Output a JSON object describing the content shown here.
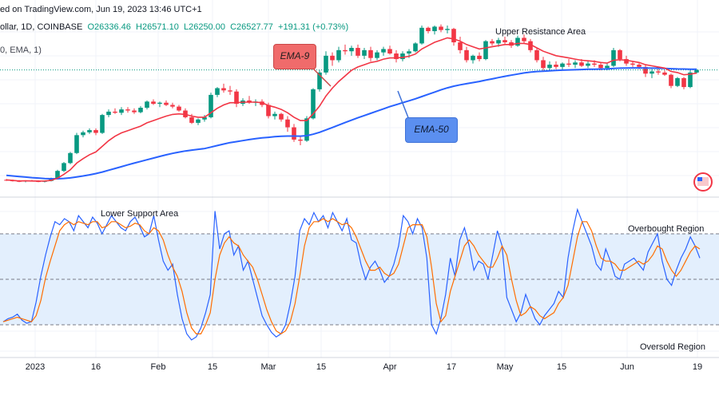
{
  "header": {
    "line1": "ed on TradingView.com, Jun 19, 2023 13:46 UTC+1",
    "symbol_prefix": "ollar, 1D, COINBASE",
    "open": "O26336.46",
    "high": "H26571.10",
    "low": "L26250.00",
    "close": "C26527.77",
    "change": "+191.31 (+0.73%)",
    "indicator": "0, EMA, 1)"
  },
  "annotations": {
    "ema9": "EMA-9",
    "ema50": "EMA-50",
    "upper_resistance": "Upper Resistance Area",
    "lower_support": "Lower Support Area",
    "overbought": "Overbought Region",
    "oversold": "Oversold Region"
  },
  "colors": {
    "ema9": "#f23645",
    "ema50": "#2962ff",
    "up_candle": "#089981",
    "down_candle": "#f23645",
    "stoch_k": "#2962ff",
    "stoch_d": "#ff6d00",
    "stoch_band": "#e3effd"
  },
  "x_axis": {
    "ticks": [
      "2023",
      "16",
      "Feb",
      "15",
      "Mar",
      "15",
      "Apr",
      "17",
      "May",
      "15",
      "Jun",
      "19"
    ]
  },
  "chart_data": [
    {
      "type": "candlestick",
      "title": "",
      "period": "1D",
      "price_range": [
        15800,
        31500
      ],
      "ohlc": [
        [
          16700,
          16780,
          16600,
          16650
        ],
        [
          16650,
          16720,
          16550,
          16600
        ],
        [
          16600,
          16680,
          16500,
          16560
        ],
        [
          16560,
          16640,
          16480,
          16620
        ],
        [
          16620,
          16700,
          16550,
          16580
        ],
        [
          16580,
          16660,
          16500,
          16540
        ],
        [
          16540,
          16620,
          16470,
          16600
        ],
        [
          16600,
          16900,
          16560,
          16850
        ],
        [
          16850,
          17600,
          16800,
          17500
        ],
        [
          17500,
          18300,
          17400,
          18200
        ],
        [
          18200,
          19200,
          18100,
          19100
        ],
        [
          19100,
          20900,
          19000,
          20700
        ],
        [
          20700,
          21100,
          20500,
          20950
        ],
        [
          20950,
          21300,
          20800,
          21150
        ],
        [
          21150,
          21300,
          20700,
          20900
        ],
        [
          20900,
          22600,
          20800,
          22500
        ],
        [
          22500,
          23000,
          22300,
          22800
        ],
        [
          22800,
          23100,
          22600,
          22700
        ],
        [
          22700,
          23200,
          22500,
          23000
        ],
        [
          23000,
          23200,
          22700,
          22900
        ],
        [
          22900,
          23100,
          22600,
          22750
        ],
        [
          22750,
          23300,
          22650,
          23150
        ],
        [
          23150,
          23800,
          23000,
          23700
        ],
        [
          23700,
          23900,
          23400,
          23500
        ],
        [
          23500,
          23700,
          23200,
          23600
        ],
        [
          23600,
          23800,
          23300,
          23400
        ],
        [
          23400,
          23600,
          23100,
          23250
        ],
        [
          23250,
          23400,
          22800,
          22900
        ],
        [
          22900,
          23100,
          22200,
          22300
        ],
        [
          22300,
          22600,
          21700,
          21800
        ],
        [
          21800,
          22200,
          21600,
          22100
        ],
        [
          22100,
          22500,
          21900,
          22300
        ],
        [
          22300,
          24500,
          22200,
          24300
        ],
        [
          24300,
          25000,
          24100,
          24900
        ],
        [
          24900,
          25300,
          24500,
          24700
        ],
        [
          24700,
          25100,
          24300,
          24600
        ],
        [
          24600,
          24800,
          23200,
          23500
        ],
        [
          23500,
          24000,
          23300,
          23800
        ],
        [
          23800,
          24200,
          23500,
          23600
        ],
        [
          23600,
          23900,
          23300,
          23700
        ],
        [
          23700,
          23900,
          23200,
          23400
        ],
        [
          23400,
          23600,
          22200,
          22400
        ],
        [
          22400,
          22800,
          22100,
          22600
        ],
        [
          22600,
          22700,
          21900,
          22100
        ],
        [
          22100,
          22400,
          21000,
          21400
        ],
        [
          21400,
          21700,
          20100,
          20300
        ],
        [
          20300,
          20600,
          19800,
          20200
        ],
        [
          20200,
          22400,
          20100,
          22200
        ],
        [
          22200,
          24900,
          22100,
          24800
        ],
        [
          24800,
          26500,
          24600,
          26300
        ],
        [
          26300,
          28200,
          26100,
          27800
        ],
        [
          27800,
          28100,
          26900,
          27400
        ],
        [
          27400,
          28600,
          27200,
          28300
        ],
        [
          28300,
          28800,
          27900,
          28200
        ],
        [
          28200,
          28700,
          27800,
          28500
        ],
        [
          28500,
          28800,
          27600,
          27800
        ],
        [
          27800,
          28500,
          27500,
          28300
        ],
        [
          28300,
          28600,
          27300,
          27600
        ],
        [
          27600,
          28300,
          27400,
          28100
        ],
        [
          28100,
          28600,
          27800,
          28400
        ],
        [
          28400,
          28700,
          27900,
          28000
        ],
        [
          28000,
          28300,
          27200,
          27500
        ],
        [
          27500,
          28200,
          27300,
          28000
        ],
        [
          28000,
          28400,
          27600,
          28200
        ],
        [
          28200,
          29000,
          28100,
          28900
        ],
        [
          28900,
          30500,
          28800,
          30300
        ],
        [
          30300,
          30400,
          29800,
          30000
        ],
        [
          30000,
          30500,
          29700,
          30400
        ],
        [
          30400,
          30600,
          29900,
          30100
        ],
        [
          30100,
          30500,
          29800,
          30200
        ],
        [
          30200,
          30300,
          28700,
          29000
        ],
        [
          29000,
          29500,
          28000,
          28300
        ],
        [
          28300,
          28600,
          27200,
          27400
        ],
        [
          27400,
          27900,
          27100,
          27800
        ],
        [
          27800,
          28100,
          27300,
          27500
        ],
        [
          27500,
          29200,
          27400,
          29100
        ],
        [
          29100,
          29300,
          28700,
          28900
        ],
        [
          28900,
          29400,
          28600,
          29200
        ],
        [
          29200,
          29500,
          28800,
          29000
        ],
        [
          29000,
          29200,
          28500,
          28700
        ],
        [
          28700,
          29600,
          28600,
          29400
        ],
        [
          29400,
          29700,
          28900,
          29100
        ],
        [
          29100,
          29300,
          28100,
          28300
        ],
        [
          28300,
          28500,
          27200,
          27400
        ],
        [
          27400,
          27700,
          26400,
          26700
        ],
        [
          26700,
          27300,
          26500,
          27000
        ],
        [
          27000,
          27300,
          26600,
          26800
        ],
        [
          26800,
          27200,
          26500,
          27100
        ],
        [
          27100,
          27500,
          26800,
          27000
        ],
        [
          27000,
          27400,
          26700,
          27200
        ],
        [
          27200,
          27500,
          26800,
          26900
        ],
        [
          26900,
          27300,
          26700,
          27100
        ],
        [
          27100,
          27400,
          26800,
          27000
        ],
        [
          27000,
          27200,
          26500,
          26700
        ],
        [
          26700,
          27100,
          26500,
          26900
        ],
        [
          26900,
          28500,
          26800,
          28300
        ],
        [
          28300,
          28400,
          27300,
          27500
        ],
        [
          27500,
          27800,
          26900,
          27100
        ],
        [
          27100,
          27300,
          26800,
          27000
        ],
        [
          27000,
          27200,
          26600,
          26800
        ],
        [
          26800,
          27000,
          25900,
          26200
        ],
        [
          26200,
          26600,
          25800,
          26400
        ],
        [
          26400,
          26600,
          26100,
          26300
        ],
        [
          26300,
          26500,
          26000,
          26100
        ],
        [
          26100,
          26200,
          24900,
          25100
        ],
        [
          25100,
          25900,
          25000,
          25800
        ],
        [
          25800,
          25900,
          24800,
          25000
        ],
        [
          25000,
          26600,
          24900,
          26300
        ],
        [
          26300,
          26600,
          26200,
          26528
        ]
      ],
      "ema9": [
        16700,
        16650,
        16600,
        16610,
        16600,
        16590,
        16600,
        16650,
        16850,
        17200,
        17600,
        18200,
        18600,
        18950,
        19200,
        19700,
        20200,
        20600,
        20900,
        21100,
        21300,
        21500,
        21800,
        22000,
        22200,
        22400,
        22550,
        22600,
        22550,
        22400,
        22300,
        22300,
        22700,
        23100,
        23400,
        23600,
        23600,
        23650,
        23650,
        23650,
        23600,
        23350,
        23200,
        23000,
        22700,
        22300,
        22000,
        22000,
        22600,
        23300,
        24200,
        24900,
        25500,
        26000,
        26500,
        26800,
        27000,
        27200,
        27300,
        27500,
        27600,
        27600,
        27650,
        27750,
        27950,
        28400,
        28700,
        29000,
        29200,
        29400,
        29300,
        29100,
        28800,
        28600,
        28400,
        28500,
        28600,
        28700,
        28800,
        28800,
        28900,
        28900,
        28800,
        28500,
        28200,
        28000,
        27800,
        27700,
        27600,
        27500,
        27400,
        27350,
        27300,
        27200,
        27150,
        27400,
        27450,
        27400,
        27300,
        27200,
        27000,
        26900,
        26800,
        26700,
        26400,
        26300,
        26100,
        26150,
        26250
      ],
      "ema50": [
        17100,
        17050,
        17000,
        16950,
        16900,
        16860,
        16820,
        16800,
        16800,
        16830,
        16880,
        16960,
        17050,
        17150,
        17260,
        17400,
        17560,
        17720,
        17880,
        18040,
        18200,
        18350,
        18500,
        18650,
        18800,
        18940,
        19070,
        19180,
        19280,
        19360,
        19430,
        19500,
        19630,
        19770,
        19900,
        20030,
        20120,
        20210,
        20300,
        20380,
        20450,
        20500,
        20560,
        20600,
        20620,
        20620,
        20610,
        20650,
        20780,
        20950,
        21170,
        21380,
        21600,
        21820,
        22040,
        22250,
        22450,
        22650,
        22850,
        23050,
        23250,
        23420,
        23600,
        23770,
        23950,
        24150,
        24350,
        24550,
        24750,
        24930,
        25080,
        25200,
        25300,
        25400,
        25500,
        25620,
        25730,
        25850,
        25960,
        26060,
        26160,
        26260,
        26330,
        26390,
        26420,
        26450,
        26480,
        26510,
        26530,
        26550,
        26570,
        26590,
        26600,
        26610,
        26620,
        26660,
        26690,
        26700,
        26710,
        26710,
        26700,
        26690,
        26680,
        26670,
        26640,
        26620,
        26610,
        26600,
        26590
      ]
    },
    {
      "type": "line",
      "title": "",
      "ylim": [
        0,
        100
      ],
      "overbought_level": 80,
      "midline_level": 50,
      "oversold_level": 20,
      "series": [
        {
          "values": [
            22,
            24,
            25,
            27,
            23,
            21,
            22,
            35,
            52,
            66,
            78,
            88,
            86,
            90,
            88,
            82,
            92,
            88,
            84,
            91,
            87,
            80,
            86,
            92,
            88,
            84,
            82,
            88,
            91,
            85,
            78,
            80,
            92,
            76,
            62,
            56,
            60,
            40,
            24,
            14,
            10,
            12,
            18,
            28,
            40,
            95,
            70,
            80,
            82,
            66,
            72,
            56,
            62,
            50,
            38,
            26,
            20,
            15,
            12,
            14,
            20,
            34,
            52,
            82,
            90,
            86,
            94,
            88,
            92,
            84,
            94,
            88,
            82,
            90,
            76,
            74,
            60,
            50,
            58,
            62,
            56,
            48,
            52,
            60,
            72,
            92,
            88,
            80,
            90,
            84,
            64,
            20,
            14,
            24,
            40,
            64,
            52,
            76,
            84,
            72,
            56,
            62,
            60,
            50,
            66,
            82,
            72,
            38,
            30,
            22,
            28,
            40,
            32,
            24,
            20,
            26,
            30,
            34,
            42,
            38,
            64,
            82,
            96,
            88,
            80,
            72,
            60,
            56,
            70,
            62,
            52,
            50,
            60,
            62,
            64,
            60,
            56,
            68,
            74,
            80,
            62,
            50,
            46,
            56,
            64,
            70,
            78,
            72,
            64
          ]
        },
        {
          "values": [
            22,
            23,
            24,
            25,
            24,
            23,
            22,
            26,
            36,
            51,
            62,
            72,
            82,
            86,
            88,
            86,
            88,
            87,
            86,
            88,
            88,
            84,
            85,
            88,
            88,
            86,
            84,
            85,
            87,
            86,
            82,
            80,
            84,
            82,
            76,
            66,
            58,
            52,
            42,
            28,
            18,
            14,
            14,
            20,
            28,
            50,
            66,
            74,
            78,
            74,
            72,
            66,
            62,
            58,
            50,
            40,
            30,
            22,
            16,
            14,
            16,
            22,
            34,
            52,
            72,
            84,
            88,
            88,
            90,
            88,
            90,
            88,
            86,
            87,
            84,
            78,
            70,
            62,
            56,
            56,
            58,
            54,
            52,
            54,
            60,
            72,
            84,
            86,
            86,
            86,
            78,
            58,
            34,
            22,
            26,
            42,
            52,
            62,
            72,
            76,
            72,
            66,
            62,
            58,
            58,
            64,
            72,
            66,
            50,
            36,
            26,
            28,
            32,
            30,
            26,
            24,
            26,
            28,
            34,
            38,
            46,
            62,
            78,
            88,
            88,
            82,
            72,
            64,
            62,
            62,
            60,
            56,
            56,
            58,
            60,
            62,
            60,
            62,
            66,
            72,
            70,
            62,
            56,
            52,
            56,
            62,
            68,
            72,
            70
          ]
        }
      ]
    }
  ]
}
